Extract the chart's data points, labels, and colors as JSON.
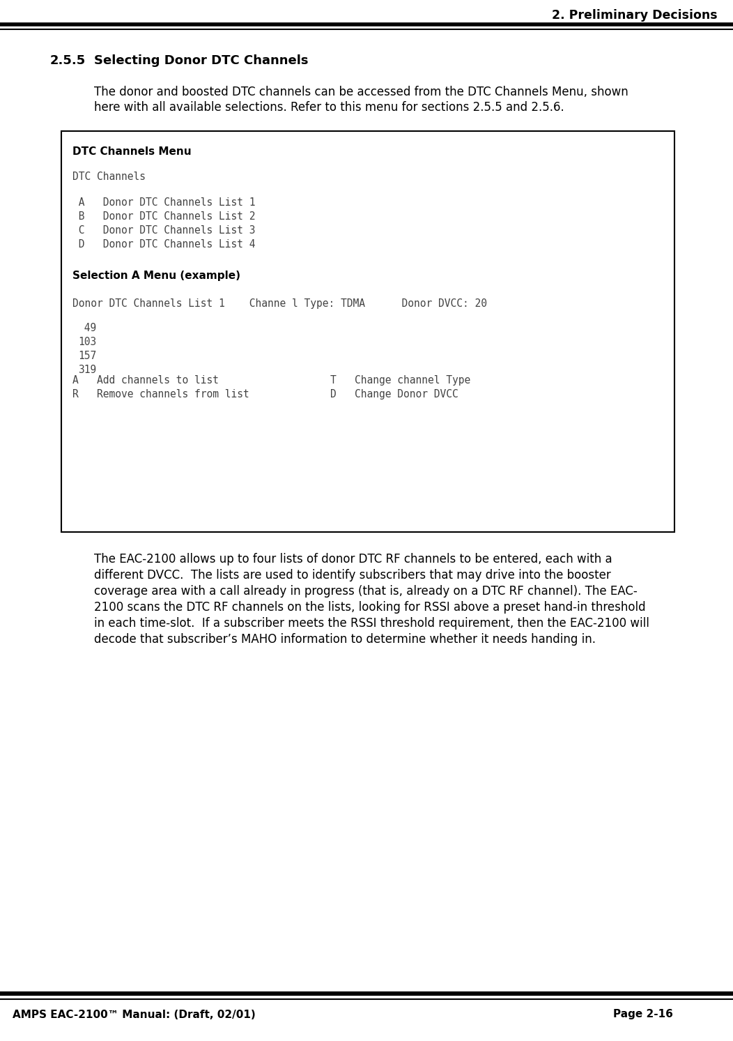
{
  "page_title": "2. Preliminary Decisions",
  "section_num": "2.5.5",
  "section_heading": "Selecting Donor DTC Channels",
  "intro_line1": "The donor and boosted DTC channels can be accessed from the DTC Channels Menu, shown",
  "intro_line2": "here with all available selections. Refer to this menu for sections 2.5.5 and 2.5.6.",
  "box_title": "DTC Channels Menu",
  "dtc_channels_label": "DTC Channels",
  "list_lines": [
    " A   Donor DTC Channels List 1",
    " B   Donor DTC Channels List 2",
    " C   Donor DTC Channels List 3",
    " D   Donor DTC Channels List 4"
  ],
  "selection_label": "Selection A Menu (example)",
  "donor_line": "Donor DTC Channels List 1    Channe l Type: TDMA      Donor DVCC: 20",
  "channel_numbers": [
    " 49",
    "103",
    "157",
    "319"
  ],
  "cmd_line1a": "A   Add channels to list",
  "cmd_line1b": "T   Change channel Type",
  "cmd_line2a": "R   Remove channels from list",
  "cmd_line2b": "D   Change Donor DVCC",
  "body_lines": [
    "The EAC-2100 allows up to four lists of donor DTC RF channels to be entered, each with a",
    "different DVCC.  The lists are used to identify subscribers that may drive into the booster",
    "coverage area with a call already in progress (that is, already on a DTC RF channel). The EAC-",
    "2100 scans the DTC RF channels on the lists, looking for RSSI above a preset hand-in threshold",
    "in each time-slot.  If a subscriber meets the RSSI threshold requirement, then the EAC-2100 will",
    "decode that subscriber’s MAHO information to determine whether it needs handing in."
  ],
  "footer_left": "AMPS EAC-2100™ Manual: (Draft, 02/01)",
  "footer_right": "Page 2-16",
  "bg_color": "#ffffff",
  "text_color": "#000000",
  "mono_color": "#444444"
}
